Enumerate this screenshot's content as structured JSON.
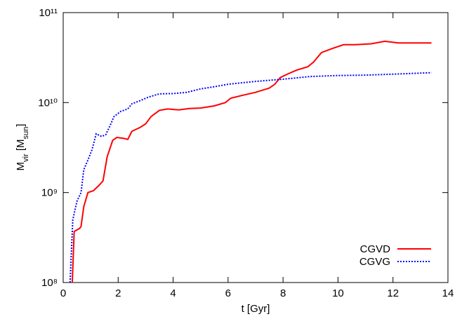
{
  "chart_data": {
    "type": "line",
    "xlabel": "t [Gyr]",
    "ylabel": [
      "M",
      "vir",
      " [M",
      "sun",
      "]"
    ],
    "xlim": [
      0,
      14
    ],
    "xticks": [
      0,
      2,
      4,
      6,
      8,
      10,
      12,
      14
    ],
    "ylim": [
      100000000,
      100000000000
    ],
    "log_y": true,
    "yticks": [
      {
        "value": 100000000,
        "label": "10⁸"
      },
      {
        "value": 1000000000,
        "label": "10⁹"
      },
      {
        "value": 10000000000,
        "label": "10¹⁰"
      },
      {
        "value": 100000000000,
        "label": "10¹¹"
      }
    ],
    "legend": "bottom-right",
    "series": [
      {
        "name": "CGVD",
        "color": "#ff0000",
        "dash": "solid",
        "x": [
          0.33,
          0.4,
          0.6,
          0.65,
          0.75,
          0.9,
          1.1,
          1.3,
          1.45,
          1.6,
          1.8,
          1.95,
          2.2,
          2.35,
          2.5,
          2.8,
          3.0,
          3.2,
          3.5,
          3.8,
          4.2,
          4.6,
          5.0,
          5.5,
          5.9,
          6.1,
          6.5,
          7.0,
          7.5,
          7.7,
          7.9,
          8.2,
          8.5,
          8.9,
          9.1,
          9.4,
          9.8,
          10.2,
          10.6,
          11.2,
          11.7,
          12.2,
          12.8,
          13.4
        ],
        "values": [
          100000000,
          370000000,
          400000000,
          420000000,
          700000000,
          1000000000,
          1050000000,
          1200000000,
          1350000000,
          2500000000,
          3800000000,
          4100000000,
          4000000000,
          3900000000,
          4800000000,
          5300000000,
          5800000000,
          7000000000,
          8200000000,
          8500000000,
          8300000000,
          8600000000,
          8700000000,
          9200000000,
          10000000000,
          11200000000,
          12000000000,
          13000000000,
          14500000000,
          16000000000,
          19000000000,
          21000000000,
          23000000000,
          25000000000,
          28000000000,
          36000000000,
          40000000000,
          44000000000,
          44000000000,
          45000000000,
          48000000000,
          46000000000,
          46000000000,
          46000000000
        ]
      },
      {
        "name": "CGVG",
        "color": "#0000ff",
        "dash": "dotted",
        "x": [
          0.25,
          0.35,
          0.5,
          0.65,
          0.75,
          0.9,
          1.05,
          1.2,
          1.4,
          1.55,
          1.7,
          1.85,
          2.1,
          2.35,
          2.5,
          2.8,
          3.1,
          3.5,
          4.0,
          4.5,
          5.0,
          5.5,
          6.0,
          7.0,
          8.0,
          9.0,
          10,
          11,
          12,
          13.4
        ],
        "values": [
          100000000,
          500000000,
          800000000,
          1000000000,
          1800000000,
          2300000000,
          3000000000,
          4500000000,
          4200000000,
          4400000000,
          5500000000,
          7000000000,
          8000000000,
          8500000000,
          9700000000,
          10500000000,
          11500000000,
          12500000000,
          12600000000,
          13000000000,
          14200000000,
          15000000000,
          16000000000,
          17200000000,
          18200000000,
          19500000000,
          20000000000,
          20200000000,
          20700000000,
          21500000000
        ]
      }
    ]
  }
}
